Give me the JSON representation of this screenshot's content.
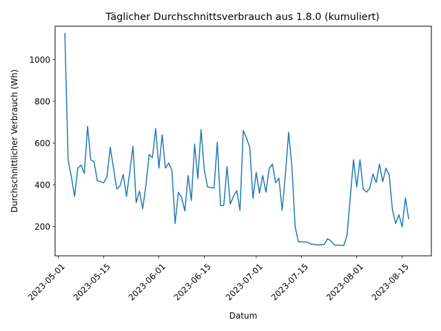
{
  "chart_data": {
    "type": "line",
    "title": "Täglicher Durchschnittsverbrauch aus 1.8.0 (kumuliert)",
    "xlabel": "Datum",
    "ylabel": "Durchschnittlicher Verbrauch (Wh)",
    "xlim": [
      "2023-04-30",
      "2023-08-24"
    ],
    "ylim": [
      60,
      1160
    ],
    "x_ticks": [
      {
        "date": "2023-05-01",
        "label": "2023-05-01"
      },
      {
        "date": "2023-05-15",
        "label": "2023-05-15"
      },
      {
        "date": "2023-06-01",
        "label": "2023-06-01"
      },
      {
        "date": "2023-06-15",
        "label": "2023-06-15"
      },
      {
        "date": "2023-07-01",
        "label": "2023-07-01"
      },
      {
        "date": "2023-07-15",
        "label": "2023-07-15"
      },
      {
        "date": "2023-08-01",
        "label": "2023-08-01"
      },
      {
        "date": "2023-08-15",
        "label": "2023-08-15"
      }
    ],
    "y_ticks": [
      {
        "value": 200,
        "label": "200"
      },
      {
        "value": 400,
        "label": "400"
      },
      {
        "value": 600,
        "label": "600"
      },
      {
        "value": 800,
        "label": "800"
      },
      {
        "value": 1000,
        "label": "1000"
      }
    ],
    "grid": false,
    "legend": "none",
    "series": [
      {
        "color": "#1f77b4",
        "points": [
          [
            "2023-05-03",
            1125
          ],
          [
            "2023-05-04",
            520
          ],
          [
            "2023-05-05",
            440
          ],
          [
            "2023-05-06",
            345
          ],
          [
            "2023-05-07",
            480
          ],
          [
            "2023-05-08",
            495
          ],
          [
            "2023-05-09",
            455
          ],
          [
            "2023-05-10",
            680
          ],
          [
            "2023-05-11",
            520
          ],
          [
            "2023-05-12",
            510
          ],
          [
            "2023-05-13",
            420
          ],
          [
            "2023-05-14",
            415
          ],
          [
            "2023-05-15",
            410
          ],
          [
            "2023-05-16",
            440
          ],
          [
            "2023-05-17",
            580
          ],
          [
            "2023-05-18",
            480
          ],
          [
            "2023-05-19",
            380
          ],
          [
            "2023-05-20",
            395
          ],
          [
            "2023-05-21",
            450
          ],
          [
            "2023-05-22",
            345
          ],
          [
            "2023-05-23",
            460
          ],
          [
            "2023-05-24",
            585
          ],
          [
            "2023-05-25",
            315
          ],
          [
            "2023-05-26",
            370
          ],
          [
            "2023-05-27",
            285
          ],
          [
            "2023-05-28",
            400
          ],
          [
            "2023-05-29",
            545
          ],
          [
            "2023-05-30",
            530
          ],
          [
            "2023-05-31",
            670
          ],
          [
            "2023-06-01",
            480
          ],
          [
            "2023-06-02",
            640
          ],
          [
            "2023-06-03",
            480
          ],
          [
            "2023-06-04",
            505
          ],
          [
            "2023-06-05",
            470
          ],
          [
            "2023-06-06",
            215
          ],
          [
            "2023-06-07",
            365
          ],
          [
            "2023-06-08",
            340
          ],
          [
            "2023-06-09",
            275
          ],
          [
            "2023-06-10",
            445
          ],
          [
            "2023-06-11",
            325
          ],
          [
            "2023-06-12",
            595
          ],
          [
            "2023-06-13",
            430
          ],
          [
            "2023-06-14",
            665
          ],
          [
            "2023-06-15",
            470
          ],
          [
            "2023-06-16",
            390
          ],
          [
            "2023-06-17",
            388
          ],
          [
            "2023-06-18",
            385
          ],
          [
            "2023-06-19",
            605
          ],
          [
            "2023-06-20",
            300
          ],
          [
            "2023-06-21",
            302
          ],
          [
            "2023-06-22",
            488
          ],
          [
            "2023-06-23",
            308
          ],
          [
            "2023-06-24",
            345
          ],
          [
            "2023-06-25",
            372
          ],
          [
            "2023-06-26",
            278
          ],
          [
            "2023-06-27",
            660
          ],
          [
            "2023-06-28",
            625
          ],
          [
            "2023-06-29",
            580
          ],
          [
            "2023-06-30",
            335
          ],
          [
            "2023-07-01",
            460
          ],
          [
            "2023-07-02",
            360
          ],
          [
            "2023-07-03",
            445
          ],
          [
            "2023-07-04",
            365
          ],
          [
            "2023-07-05",
            478
          ],
          [
            "2023-07-06",
            500
          ],
          [
            "2023-07-07",
            410
          ],
          [
            "2023-07-08",
            432
          ],
          [
            "2023-07-09",
            278
          ],
          [
            "2023-07-10",
            450
          ],
          [
            "2023-07-11",
            652
          ],
          [
            "2023-07-12",
            490
          ],
          [
            "2023-07-13",
            200
          ],
          [
            "2023-07-14",
            127
          ],
          [
            "2023-07-15",
            127
          ],
          [
            "2023-07-16",
            127
          ],
          [
            "2023-07-17",
            124
          ],
          [
            "2023-07-18",
            116
          ],
          [
            "2023-07-19",
            114
          ],
          [
            "2023-07-20",
            112
          ],
          [
            "2023-07-21",
            113
          ],
          [
            "2023-07-22",
            115
          ],
          [
            "2023-07-23",
            142
          ],
          [
            "2023-07-24",
            132
          ],
          [
            "2023-07-25",
            113
          ],
          [
            "2023-07-26",
            111
          ],
          [
            "2023-07-27",
            110
          ],
          [
            "2023-07-28",
            110
          ],
          [
            "2023-07-29",
            158
          ],
          [
            "2023-07-30",
            340
          ],
          [
            "2023-07-31",
            520
          ],
          [
            "2023-08-01",
            390
          ],
          [
            "2023-08-02",
            520
          ],
          [
            "2023-08-03",
            380
          ],
          [
            "2023-08-04",
            365
          ],
          [
            "2023-08-05",
            385
          ],
          [
            "2023-08-06",
            452
          ],
          [
            "2023-08-07",
            412
          ],
          [
            "2023-08-08",
            500
          ],
          [
            "2023-08-09",
            415
          ],
          [
            "2023-08-10",
            480
          ],
          [
            "2023-08-11",
            448
          ],
          [
            "2023-08-12",
            280
          ],
          [
            "2023-08-13",
            215
          ],
          [
            "2023-08-14",
            257
          ],
          [
            "2023-08-15",
            198
          ],
          [
            "2023-08-16",
            337
          ],
          [
            "2023-08-17",
            237
          ]
        ]
      }
    ]
  }
}
